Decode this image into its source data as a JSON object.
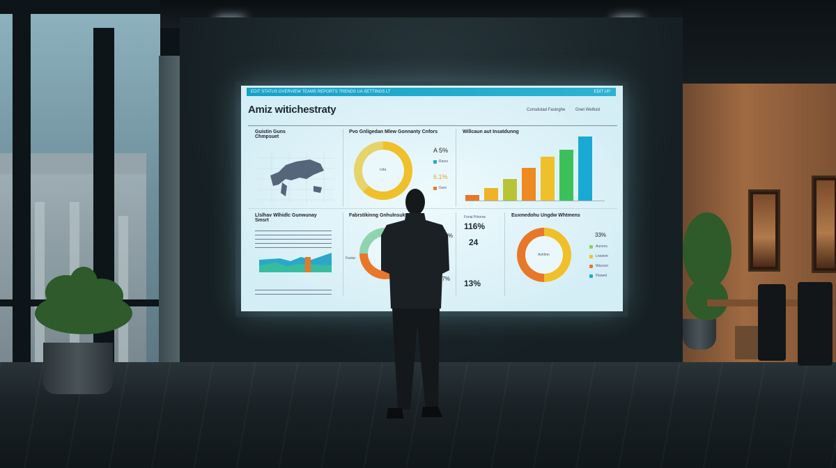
{
  "dashboard": {
    "nav_label": "EDIT STATUS OVERVIEW TEAMS REPORTS TRENDS UA SETTINGS LT",
    "nav_right": "EDIT UP",
    "title": "Amiz witichestraty",
    "header_links": [
      "Consdutad Fasinghe",
      "Gnet Wetfuid"
    ],
    "panels": {
      "map": {
        "title": "Guistin Guns Chmpsuet"
      },
      "donut1": {
        "title": "Pvo Gnligedan Mlew Gonnanty Cnfors",
        "center": "Uda",
        "values": [
          "A 5%",
          "6.1%"
        ],
        "legend": [
          "Rasrs",
          "Garo"
        ]
      },
      "bars": {
        "title": "Willcaun aut Insatdunng",
        "bar_levels": [
          0.09,
          0.2,
          0.34,
          0.51,
          0.68,
          0.79,
          1.0
        ],
        "bar_colors": [
          "#e8772a",
          "#efb326",
          "#b8c436",
          "#ee8a1f",
          "#f0c02a",
          "#3cc15a",
          "#1aa9d4"
        ]
      },
      "text": {
        "title": "Llslhav Wlhidlc Gunwunay Smsrt"
      },
      "donut2": {
        "title": "Fabrstikinng Gnhulnsuktr",
        "values": [
          "12%",
          "17%"
        ],
        "label": "Fastar"
      },
      "stats": {
        "title": "Fonal Prlenne",
        "values": [
          "116%",
          "24",
          "13%"
        ]
      },
      "donut3": {
        "title": "Euxmedohu Ungdw Whtmens",
        "center": "Ashlmn",
        "value": "33%",
        "legend": [
          "Aunons",
          "Lnedom",
          "Wasoun",
          "Flawed"
        ]
      }
    }
  },
  "colors": {
    "accent": "#17a2c7",
    "yellow": "#f0c02a",
    "orange": "#e8772a"
  }
}
